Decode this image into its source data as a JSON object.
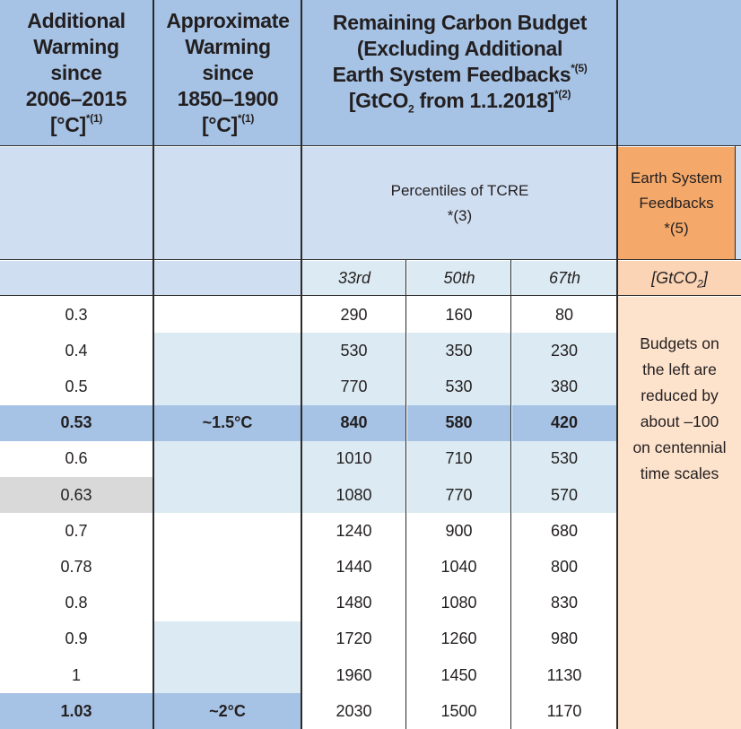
{
  "header": {
    "col1": {
      "lines": [
        "Additional",
        "Warming",
        "since",
        "2006–2015"
      ],
      "unit": "[°C]",
      "note": "*(1)"
    },
    "col2": {
      "lines": [
        "Approximate",
        "Warming",
        "since",
        "1850–1900"
      ],
      "unit": "[°C]",
      "note": "*(1)"
    },
    "col3": {
      "line1": "Remaining Carbon Budget",
      "line2": "(Excluding Additional",
      "line3": "Earth System Feedbacks",
      "line3_note": "*(5)",
      "line4_pre": "[GtCO",
      "line4_sub": "2",
      "line4_post": " from 1.1.2018]",
      "line4_note": "*(2)"
    }
  },
  "subheader": {
    "percentiles_label": "Percentiles of TCRE",
    "percentiles_note": "*(3)",
    "esf_lines": [
      "Earth System",
      "Feedbacks",
      "*(5)"
    ]
  },
  "units": {
    "p33": "33rd",
    "p50": "50th",
    "p67": "67th",
    "esf_pre": "[GtCO",
    "esf_sub": "2",
    "esf_post": "]"
  },
  "esf_note_lines": [
    "Budgets on",
    "the left are",
    "reduced by",
    "about –100",
    "on centennial",
    "time scales"
  ],
  "rows": [
    {
      "add": "0.3",
      "approx": "",
      "p33": "290",
      "p50": "160",
      "p67": "80"
    },
    {
      "add": "0.4",
      "approx": "",
      "p33": "530",
      "p50": "350",
      "p67": "230"
    },
    {
      "add": "0.5",
      "approx": "",
      "p33": "770",
      "p50": "530",
      "p67": "380"
    },
    {
      "add": "0.53",
      "approx": "~1.5°C",
      "p33": "840",
      "p50": "580",
      "p67": "420"
    },
    {
      "add": "0.6",
      "approx": "",
      "p33": "1010",
      "p50": "710",
      "p67": "530"
    },
    {
      "add": "0.63",
      "approx": "",
      "p33": "1080",
      "p50": "770",
      "p67": "570"
    },
    {
      "add": "0.7",
      "approx": "",
      "p33": "1240",
      "p50": "900",
      "p67": "680"
    },
    {
      "add": "0.78",
      "approx": "",
      "p33": "1440",
      "p50": "1040",
      "p67": "800"
    },
    {
      "add": "0.8",
      "approx": "",
      "p33": "1480",
      "p50": "1080",
      "p67": "830"
    },
    {
      "add": "0.9",
      "approx": "",
      "p33": "1720",
      "p50": "1260",
      "p67": "980"
    },
    {
      "add": "1",
      "approx": "",
      "p33": "1960",
      "p50": "1450",
      "p67": "1130"
    },
    {
      "add": "1.03",
      "approx": "~2°C",
      "p33": "2030",
      "p50": "1500",
      "p67": "1170"
    }
  ]
}
